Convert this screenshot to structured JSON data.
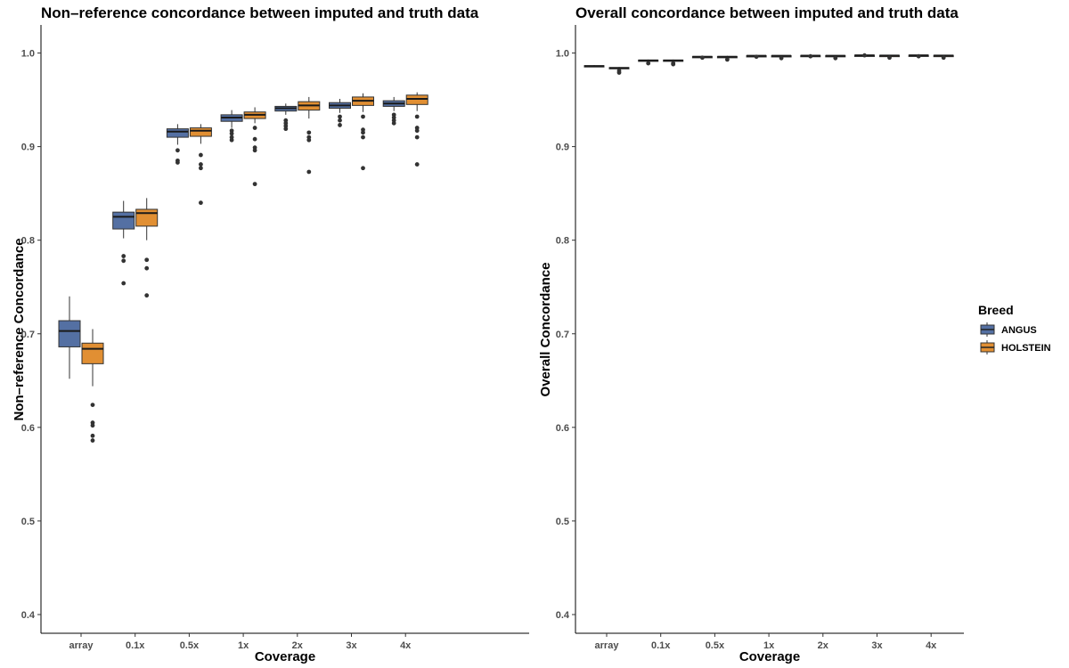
{
  "chart_data": [
    {
      "type": "box",
      "title": "Non–reference concordance between imputed and truth data",
      "xlabel": "Coverage",
      "ylabel": "Non–reference Concordance",
      "categories": [
        "array",
        "0.1x",
        "0.5x",
        "1x",
        "2x",
        "3x",
        "4x"
      ],
      "ylim": [
        0.38,
        1.03
      ],
      "yticks": [
        0.4,
        0.5,
        0.6,
        0.7,
        0.8,
        0.9,
        1.0
      ],
      "ytick_labels": [
        "0.4",
        "0.5",
        "0.6",
        "0.7",
        "0.8",
        "0.9",
        "1.0"
      ],
      "grid": false,
      "series": [
        {
          "name": "ANGUS",
          "boxes": [
            {
              "whisker_low": 0.652,
              "q1": 0.686,
              "median": 0.703,
              "q3": 0.714,
              "whisker_high": 0.74,
              "outliers": []
            },
            {
              "whisker_low": 0.802,
              "q1": 0.812,
              "median": 0.825,
              "q3": 0.83,
              "whisker_high": 0.842,
              "outliers": [
                0.783,
                0.778,
                0.754
              ]
            },
            {
              "whisker_low": 0.902,
              "q1": 0.91,
              "median": 0.916,
              "q3": 0.919,
              "whisker_high": 0.924,
              "outliers": [
                0.896,
                0.885,
                0.883
              ]
            },
            {
              "whisker_low": 0.92,
              "q1": 0.927,
              "median": 0.931,
              "q3": 0.934,
              "whisker_high": 0.939,
              "outliers": [
                0.917,
                0.914,
                0.91,
                0.907
              ]
            },
            {
              "whisker_low": 0.934,
              "q1": 0.938,
              "median": 0.941,
              "q3": 0.943,
              "whisker_high": 0.946,
              "outliers": [
                0.928,
                0.925,
                0.922,
                0.919
              ]
            },
            {
              "whisker_low": 0.936,
              "q1": 0.941,
              "median": 0.944,
              "q3": 0.947,
              "whisker_high": 0.951,
              "outliers": [
                0.932,
                0.928,
                0.923
              ]
            },
            {
              "whisker_low": 0.938,
              "q1": 0.943,
              "median": 0.946,
              "q3": 0.949,
              "whisker_high": 0.953,
              "outliers": [
                0.934,
                0.931,
                0.928,
                0.925
              ]
            }
          ]
        },
        {
          "name": "HOLSTEIN",
          "boxes": [
            {
              "whisker_low": 0.644,
              "q1": 0.668,
              "median": 0.684,
              "q3": 0.69,
              "whisker_high": 0.705,
              "outliers": [
                0.624,
                0.605,
                0.602,
                0.591,
                0.586
              ]
            },
            {
              "whisker_low": 0.8,
              "q1": 0.815,
              "median": 0.829,
              "q3": 0.833,
              "whisker_high": 0.845,
              "outliers": [
                0.779,
                0.77,
                0.741
              ]
            },
            {
              "whisker_low": 0.903,
              "q1": 0.911,
              "median": 0.917,
              "q3": 0.92,
              "whisker_high": 0.924,
              "outliers": [
                0.891,
                0.881,
                0.877,
                0.84
              ]
            },
            {
              "whisker_low": 0.925,
              "q1": 0.93,
              "median": 0.934,
              "q3": 0.937,
              "whisker_high": 0.942,
              "outliers": [
                0.92,
                0.908,
                0.899,
                0.896,
                0.86
              ]
            },
            {
              "whisker_low": 0.93,
              "q1": 0.939,
              "median": 0.944,
              "q3": 0.948,
              "whisker_high": 0.953,
              "outliers": [
                0.915,
                0.91,
                0.907,
                0.873
              ]
            },
            {
              "whisker_low": 0.937,
              "q1": 0.944,
              "median": 0.949,
              "q3": 0.953,
              "whisker_high": 0.957,
              "outliers": [
                0.932,
                0.918,
                0.915,
                0.91,
                0.877
              ]
            },
            {
              "whisker_low": 0.938,
              "q1": 0.945,
              "median": 0.951,
              "q3": 0.955,
              "whisker_high": 0.958,
              "outliers": [
                0.932,
                0.92,
                0.917,
                0.91,
                0.881
              ]
            }
          ]
        }
      ]
    },
    {
      "type": "box",
      "title": "Overall concordance between imputed and truth data",
      "xlabel": "Coverage",
      "ylabel": "Overall Concordance",
      "categories": [
        "array",
        "0.1x",
        "0.5x",
        "1x",
        "2x",
        "3x",
        "4x"
      ],
      "ylim": [
        0.38,
        1.03
      ],
      "yticks": [
        0.4,
        0.5,
        0.6,
        0.7,
        0.8,
        0.9,
        1.0
      ],
      "ytick_labels": [
        "0.4",
        "0.5",
        "0.6",
        "0.7",
        "0.8",
        "0.9",
        "1.0"
      ],
      "grid": false,
      "series": [
        {
          "name": "ANGUS",
          "boxes": [
            {
              "whisker_low": 0.985,
              "q1": 0.9855,
              "median": 0.986,
              "q3": 0.9865,
              "whisker_high": 0.987,
              "outliers": []
            },
            {
              "whisker_low": 0.991,
              "q1": 0.9915,
              "median": 0.992,
              "q3": 0.9925,
              "whisker_high": 0.993,
              "outliers": [
                0.989
              ]
            },
            {
              "whisker_low": 0.995,
              "q1": 0.9955,
              "median": 0.996,
              "q3": 0.9963,
              "whisker_high": 0.997,
              "outliers": [
                0.995
              ]
            },
            {
              "whisker_low": 0.9965,
              "q1": 0.9968,
              "median": 0.997,
              "q3": 0.9972,
              "whisker_high": 0.9975,
              "outliers": [
                0.996
              ]
            },
            {
              "whisker_low": 0.9968,
              "q1": 0.997,
              "median": 0.9972,
              "q3": 0.9974,
              "whisker_high": 0.9977,
              "outliers": [
                0.9965
              ]
            },
            {
              "whisker_low": 0.997,
              "q1": 0.9972,
              "median": 0.9975,
              "q3": 0.9977,
              "whisker_high": 0.998,
              "outliers": [
                0.9975
              ]
            },
            {
              "whisker_low": 0.997,
              "q1": 0.9973,
              "median": 0.9975,
              "q3": 0.9977,
              "whisker_high": 0.998,
              "outliers": [
                0.9965
              ]
            }
          ]
        },
        {
          "name": "HOLSTEIN",
          "boxes": [
            {
              "whisker_low": 0.983,
              "q1": 0.9835,
              "median": 0.984,
              "q3": 0.9845,
              "whisker_high": 0.985,
              "outliers": [
                0.981,
                0.979
              ]
            },
            {
              "whisker_low": 0.991,
              "q1": 0.9915,
              "median": 0.992,
              "q3": 0.9925,
              "whisker_high": 0.993,
              "outliers": [
                0.989,
                0.988
              ]
            },
            {
              "whisker_low": 0.995,
              "q1": 0.9955,
              "median": 0.996,
              "q3": 0.9963,
              "whisker_high": 0.997,
              "outliers": [
                0.993
              ]
            },
            {
              "whisker_low": 0.9962,
              "q1": 0.9966,
              "median": 0.997,
              "q3": 0.9972,
              "whisker_high": 0.9975,
              "outliers": [
                0.9945
              ]
            },
            {
              "whisker_low": 0.9965,
              "q1": 0.9968,
              "median": 0.997,
              "q3": 0.9973,
              "whisker_high": 0.9976,
              "outliers": [
                0.9945
              ]
            },
            {
              "whisker_low": 0.9968,
              "q1": 0.997,
              "median": 0.9973,
              "q3": 0.9975,
              "whisker_high": 0.9978,
              "outliers": [
                0.995
              ]
            },
            {
              "whisker_low": 0.9968,
              "q1": 0.997,
              "median": 0.9973,
              "q3": 0.9975,
              "whisker_high": 0.9978,
              "outliers": [
                0.995
              ]
            }
          ]
        }
      ]
    }
  ],
  "legend": {
    "title": "Breed",
    "items": [
      {
        "label": "ANGUS",
        "color": "#5470a3"
      },
      {
        "label": "HOLSTEIN",
        "color": "#e18f33"
      }
    ]
  },
  "colors": {
    "ANGUS": "#5470a3",
    "HOLSTEIN": "#e18f33",
    "box_line": "#333333",
    "axis": "#000000",
    "tick_text": "#4d4d4d"
  }
}
